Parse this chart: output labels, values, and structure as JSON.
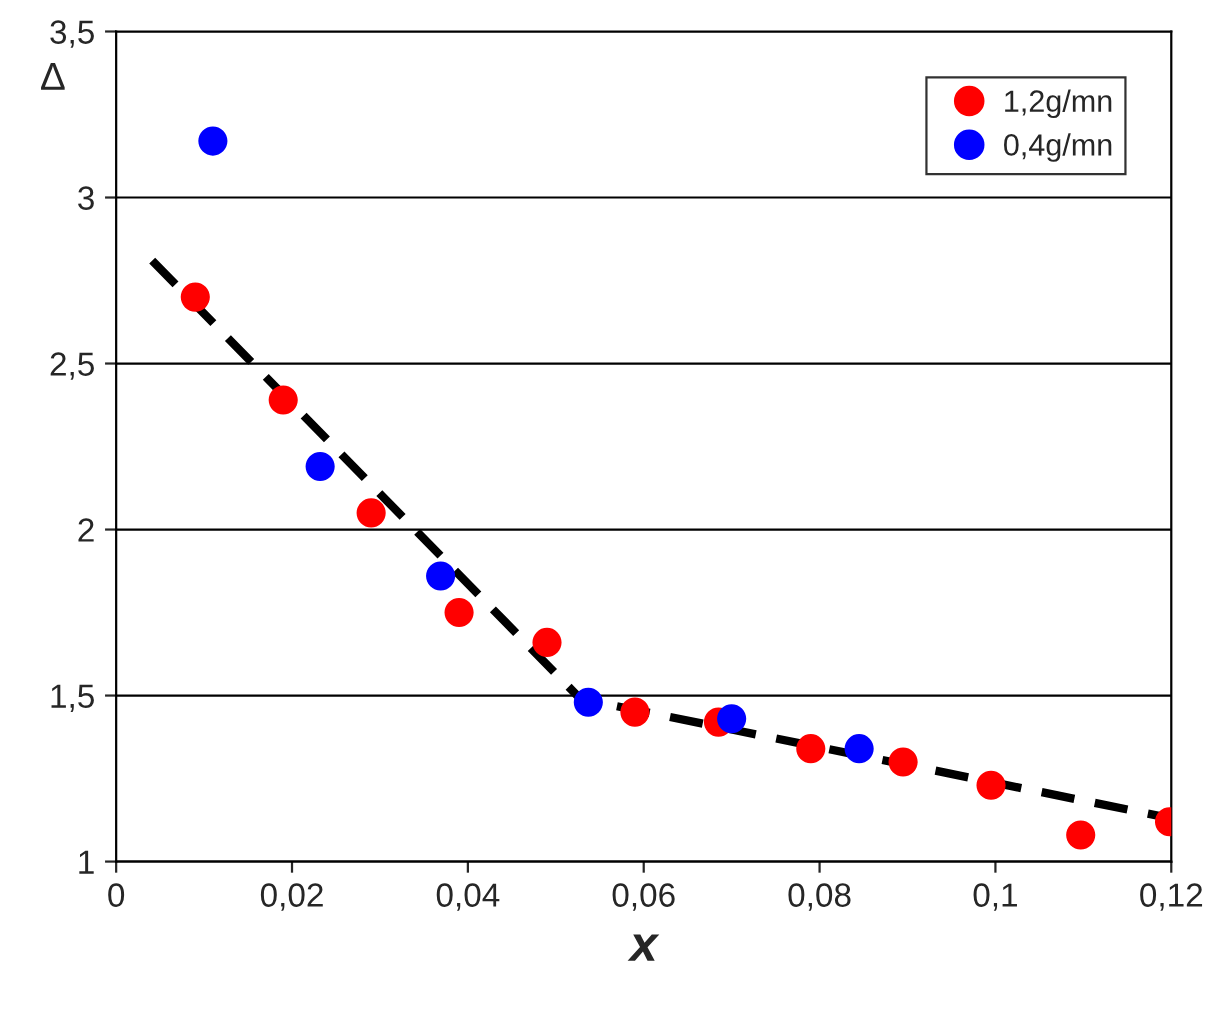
{
  "chart_data": {
    "type": "scatter",
    "xlabel": "x",
    "ylabel": "Δ",
    "series": [
      {
        "name": "1,2g/mn",
        "color": "#ff0000",
        "marker": "circle",
        "x": [
          0.009,
          0.019,
          0.029,
          0.039,
          0.049,
          0.059,
          0.0685,
          0.079,
          0.0895,
          0.0995,
          0.1097,
          0.1198
        ],
        "values": [
          2.7,
          2.39,
          2.05,
          1.75,
          1.66,
          1.45,
          1.42,
          1.34,
          1.3,
          1.23,
          1.08,
          1.12
        ]
      },
      {
        "name": "0,4g/mn",
        "color": "#0000ff",
        "marker": "circle",
        "x": [
          0.011,
          0.0232,
          0.0369,
          0.0537,
          0.07,
          0.0845
        ],
        "values": [
          3.17,
          2.19,
          1.86,
          1.48,
          1.43,
          1.34
        ]
      },
      {
        "type": "line",
        "color": "#000000",
        "line_style": "dashed",
        "marker": "none",
        "x": [
          0.0041,
          0.0528,
          0.12
        ],
        "values": [
          2.81,
          1.49,
          1.13
        ]
      }
    ],
    "xlim": [
      0,
      0.12
    ],
    "ylim": [
      1,
      3.5
    ],
    "xticks": [
      0,
      {
        "value": 0.02,
        "label": "0,02"
      },
      {
        "value": 0.04,
        "label": "0,04"
      },
      {
        "value": 0.06,
        "label": "0,06"
      },
      {
        "value": 0.08,
        "label": "0,08"
      },
      {
        "value": 0.1,
        "label": "0,1"
      },
      {
        "value": 0.12,
        "label": "0,12"
      }
    ],
    "yticks": [
      1,
      {
        "value": 1.5,
        "label": "1,5"
      },
      2,
      {
        "value": 2.5,
        "label": "2,5"
      },
      3,
      {
        "value": 3.5,
        "label": "3,5"
      }
    ],
    "grid": "y",
    "legend": "top right"
  }
}
